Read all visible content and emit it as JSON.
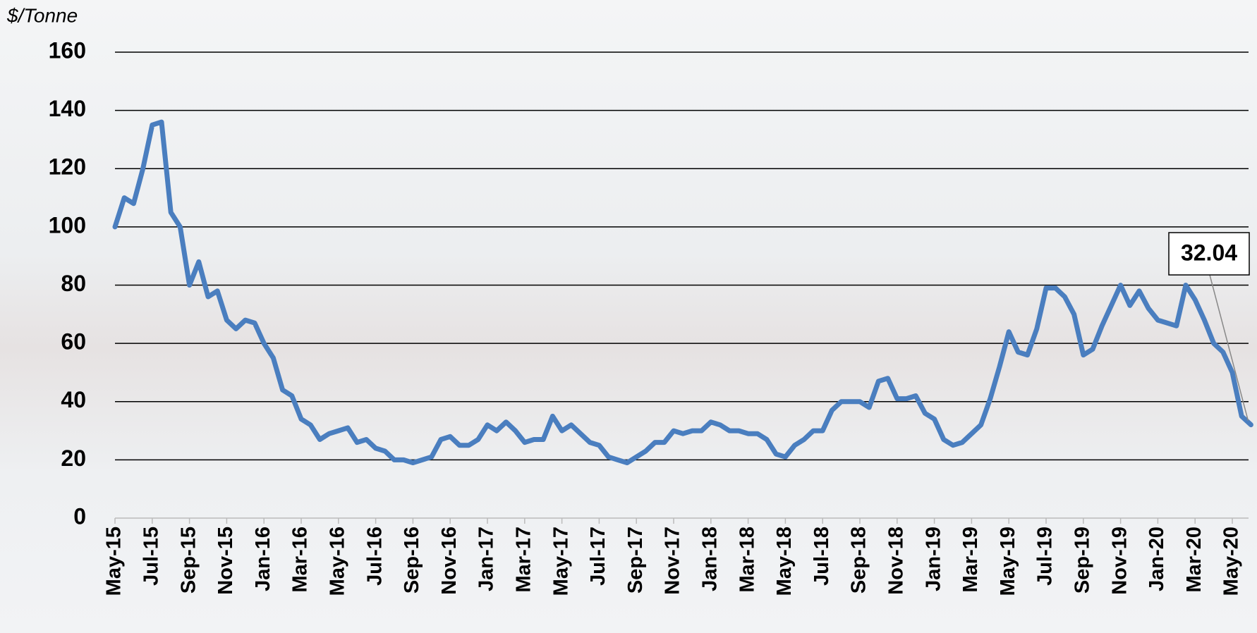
{
  "chart_data": {
    "type": "line",
    "y_label": "$/Tonne",
    "categories": [
      "May-15",
      null,
      null,
      null,
      "Jul-15",
      null,
      null,
      null,
      "Sep-15",
      null,
      null,
      null,
      "Nov-15",
      null,
      null,
      null,
      "Jan-16",
      null,
      null,
      null,
      "Mar-16",
      null,
      null,
      null,
      "May-16",
      null,
      null,
      null,
      "Jul-16",
      null,
      null,
      null,
      "Sep-16",
      null,
      null,
      null,
      "Nov-16",
      null,
      null,
      null,
      "Jan-17",
      null,
      null,
      null,
      "Mar-17",
      null,
      null,
      null,
      "May-17",
      null,
      null,
      null,
      "Jul-17",
      null,
      null,
      null,
      "Sep-17",
      null,
      null,
      null,
      "Nov-17",
      null,
      null,
      null,
      "Jan-18",
      null,
      null,
      null,
      "Mar-18",
      null,
      null,
      null,
      "May-18",
      null,
      null,
      null,
      "Jul-18",
      null,
      null,
      null,
      "Sep-18",
      null,
      null,
      null,
      "Nov-18",
      null,
      null,
      null,
      "Jan-19",
      null,
      null,
      null,
      "Mar-19",
      null,
      null,
      null,
      "May-19",
      null,
      null,
      null,
      "Jul-19",
      null,
      null,
      null,
      "Sep-19",
      null,
      null,
      null,
      "Nov-19",
      null,
      null,
      null,
      "Jan-20",
      null,
      null,
      null,
      "Mar-20",
      null,
      null,
      null,
      "May-20",
      null,
      null
    ],
    "series": [
      {
        "color": "#4a7ebf",
        "values": [
          100,
          110,
          108,
          120,
          135,
          136,
          105,
          100,
          80,
          88,
          76,
          78,
          68,
          65,
          68,
          67,
          60,
          55,
          44,
          42,
          34,
          32,
          27,
          29,
          30,
          31,
          26,
          27,
          24,
          23,
          20,
          20,
          19,
          20,
          21,
          27,
          28,
          25,
          25,
          27,
          32,
          30,
          33,
          30,
          26,
          27,
          27,
          35,
          30,
          32,
          29,
          26,
          25,
          21,
          20,
          19,
          21,
          23,
          26,
          26,
          30,
          29,
          30,
          30,
          33,
          32,
          30,
          30,
          29,
          29,
          27,
          22,
          21,
          25,
          27,
          30,
          30,
          37,
          40,
          40,
          40,
          38,
          47,
          48,
          41,
          41,
          42,
          36,
          34,
          27,
          25,
          26,
          29,
          32,
          41,
          52,
          64,
          57,
          56,
          65,
          79,
          79,
          76,
          70,
          56,
          58,
          66,
          73,
          80,
          73,
          78,
          72,
          68,
          67,
          66,
          80,
          75,
          68,
          60,
          57,
          50,
          35,
          32.04
        ]
      }
    ],
    "ylim": [
      0,
      160
    ],
    "yticks": [
      0,
      20,
      40,
      60,
      80,
      100,
      120,
      140,
      160
    ],
    "grid": true
  }
}
